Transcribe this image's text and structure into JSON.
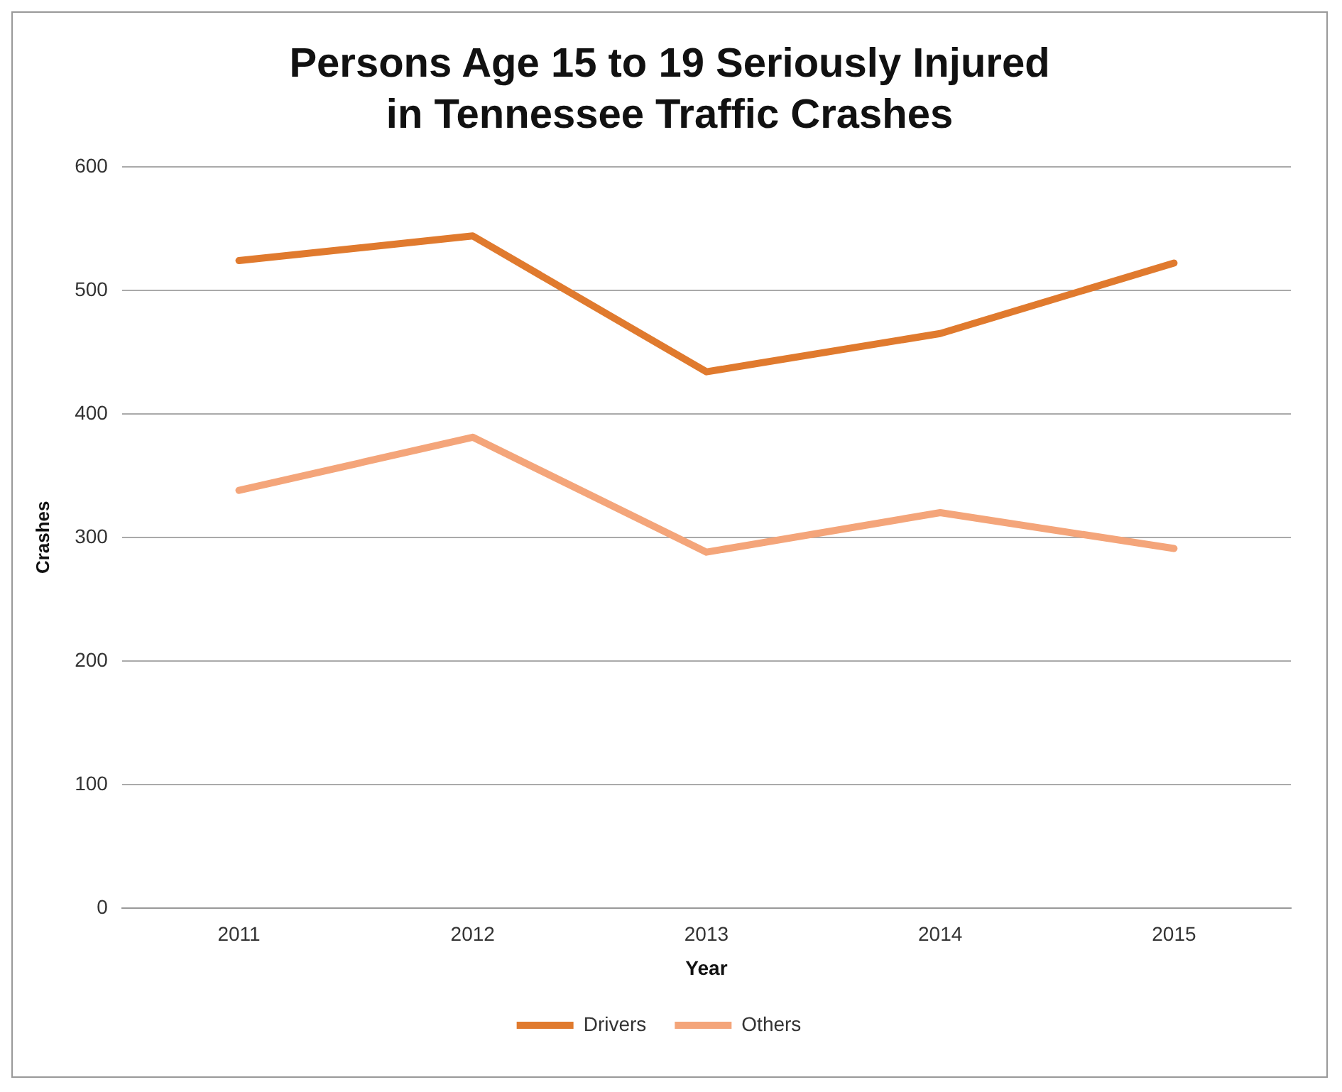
{
  "chart_data": {
    "type": "line",
    "title": "Persons Age 15 to 19 Seriously Injured in Tennessee Traffic Crashes",
    "xlabel": "Year",
    "ylabel": "Crashes",
    "categories": [
      "2011",
      "2012",
      "2013",
      "2014",
      "2015"
    ],
    "series": [
      {
        "name": "Drivers",
        "color": "#e07a2e",
        "values": [
          524,
          544,
          434,
          465,
          522
        ]
      },
      {
        "name": "Others",
        "color": "#f4a57a",
        "values": [
          338,
          381,
          288,
          320,
          291
        ]
      }
    ],
    "ylim": [
      0,
      600
    ],
    "yticks": [
      0,
      100,
      200,
      300,
      400,
      500,
      600
    ],
    "grid": "y",
    "legend": "bottom",
    "marker": "none",
    "line_style": "solid"
  }
}
